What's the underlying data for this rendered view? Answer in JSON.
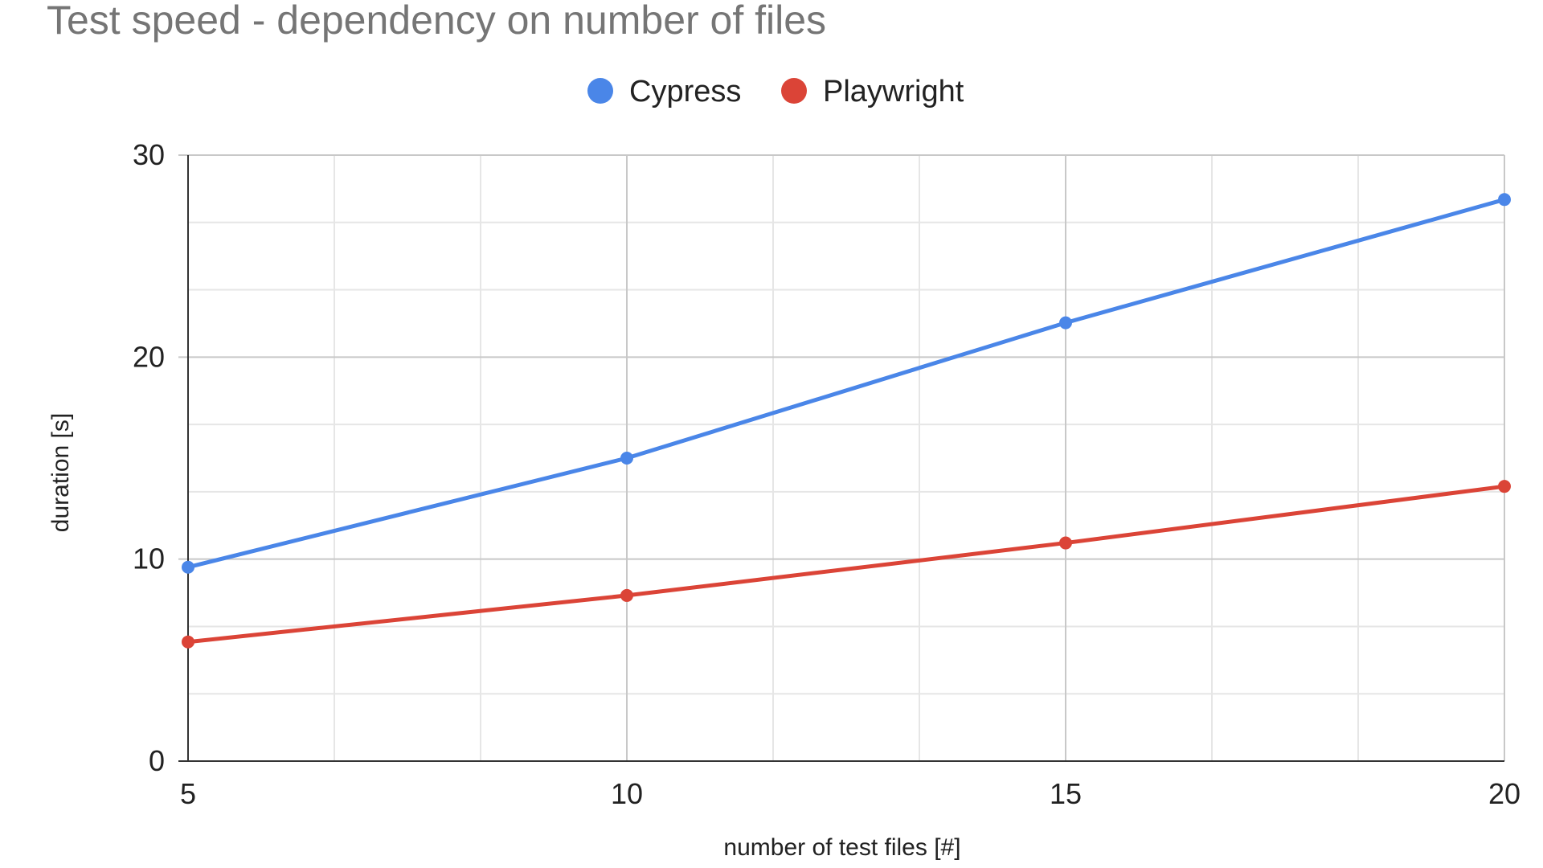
{
  "chart_data": {
    "type": "line",
    "title": "Test speed - dependency on number of files",
    "xlabel": "number of test files [#]",
    "ylabel": "duration [s]",
    "x": [
      5,
      10,
      15,
      20
    ],
    "x_ticks": [
      "5",
      "10",
      "15",
      "20"
    ],
    "y_ticks": [
      "0",
      "10",
      "20",
      "30"
    ],
    "xlim": [
      5,
      20
    ],
    "ylim": [
      0,
      30
    ],
    "grid": true,
    "legend_position": "top-center",
    "series": [
      {
        "name": "Cypress",
        "color": "#4a86e8",
        "values": [
          9.6,
          15.0,
          21.7,
          27.8
        ]
      },
      {
        "name": "Playwright",
        "color": "#db4437",
        "values": [
          5.9,
          8.2,
          10.8,
          13.6
        ]
      }
    ]
  }
}
